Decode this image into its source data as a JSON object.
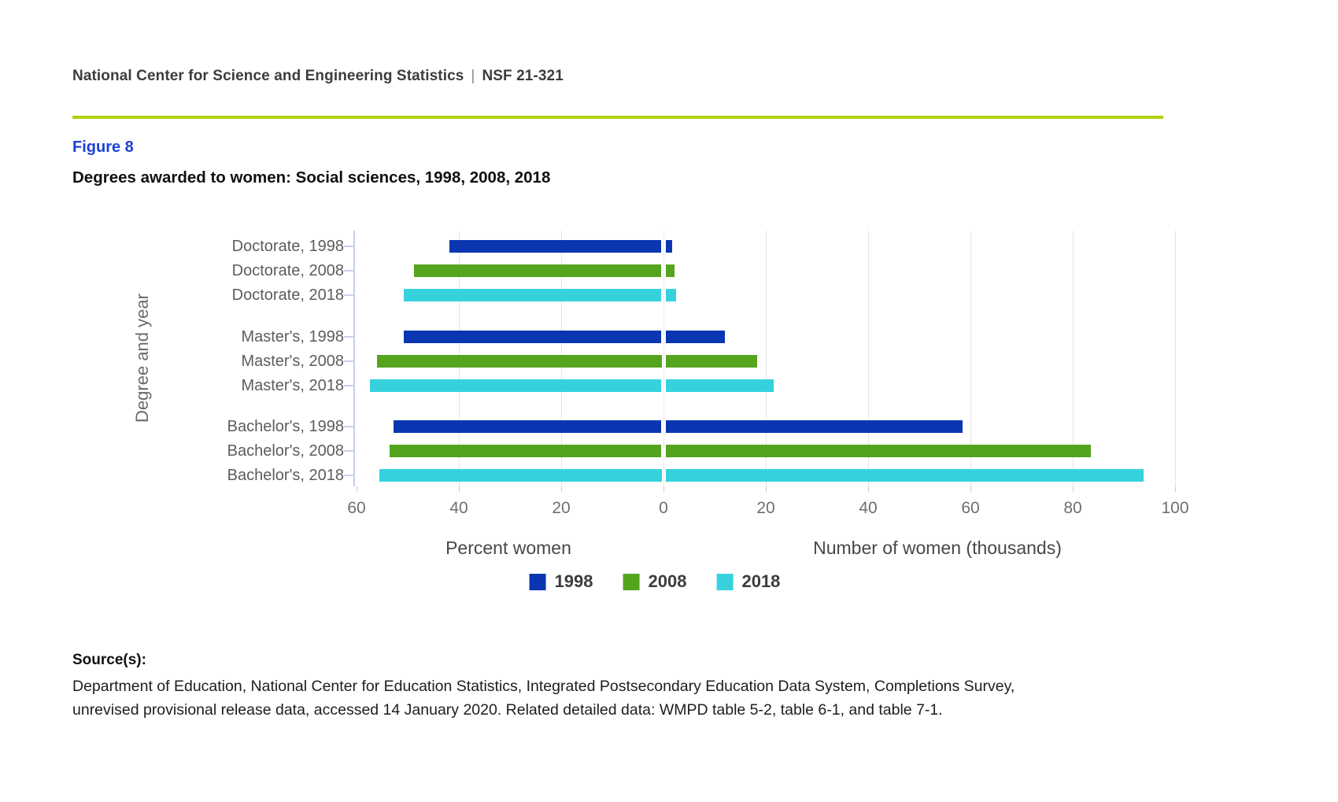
{
  "header": {
    "org": "National Center for Science and Engineering Statistics",
    "separator": "|",
    "publication": "NSF 21-321"
  },
  "figure": {
    "label": "Figure 8",
    "title": "Degrees awarded to women: Social sciences, 1998, 2008, 2018"
  },
  "chart_data": {
    "type": "bar",
    "orientation": "horizontal-diverging",
    "ylabel": "Degree and year",
    "left_axis": {
      "label": "Percent women",
      "range": [
        60,
        0
      ]
    },
    "right_axis": {
      "label": "Number of women (thousands)",
      "range": [
        0,
        100
      ]
    },
    "x_ticks": [
      {
        "label": "60",
        "v": -60
      },
      {
        "label": "40",
        "v": -40
      },
      {
        "label": "20",
        "v": -20
      },
      {
        "label": "0",
        "v": 0
      },
      {
        "label": "20",
        "v": 20
      },
      {
        "label": "40",
        "v": 40
      },
      {
        "label": "60",
        "v": 60
      },
      {
        "label": "80",
        "v": 80
      },
      {
        "label": "100",
        "v": 100
      }
    ],
    "gridline_values": [
      -40,
      -20,
      0,
      20,
      40,
      60,
      80,
      100
    ],
    "legend": [
      {
        "label": "1998",
        "color": "#0a36b1"
      },
      {
        "label": "2008",
        "color": "#55a41e"
      },
      {
        "label": "2018",
        "color": "#35d2de"
      }
    ],
    "rows": [
      {
        "category": "Doctorate, 1998",
        "year": "1998",
        "percent_women": 41.8,
        "number_thousands": 1.7
      },
      {
        "category": "Doctorate, 2008",
        "year": "2008",
        "percent_women": 48.8,
        "number_thousands": 2.1
      },
      {
        "category": "Doctorate, 2018",
        "year": "2018",
        "percent_women": 50.7,
        "number_thousands": 2.4
      },
      {
        "category": "Master's, 1998",
        "year": "1998",
        "percent_women": 50.7,
        "number_thousands": 12.0
      },
      {
        "category": "Master's, 2008",
        "year": "2008",
        "percent_women": 56.0,
        "number_thousands": 18.3
      },
      {
        "category": "Master's, 2018",
        "year": "2018",
        "percent_women": 57.4,
        "number_thousands": 21.6
      },
      {
        "category": "Bachelor's, 1998",
        "year": "1998",
        "percent_women": 52.7,
        "number_thousands": 58.4
      },
      {
        "category": "Bachelor's, 2008",
        "year": "2008",
        "percent_women": 53.6,
        "number_thousands": 83.5
      },
      {
        "category": "Bachelor's, 2018",
        "year": "2018",
        "percent_women": 55.5,
        "number_thousands": 93.8
      }
    ]
  },
  "source": {
    "label": "Source(s):",
    "lines": [
      "Department of Education, National Center for Education Statistics, Integrated Postsecondary Education Data System, Completions Survey,",
      "unrevised provisional release data, accessed 14 January 2020. Related detailed data: WMPD table 5-2, table 6-1, and table 7-1."
    ]
  },
  "colors": {
    "accent_line": "#aed309",
    "figure_label_blue": "#1c42d8",
    "bar_1998": "#0a36b1",
    "bar_2008": "#55a41e",
    "bar_2018": "#35d2de",
    "axis_line": "#c6cfe9",
    "gridline": "#e4e4e4"
  }
}
